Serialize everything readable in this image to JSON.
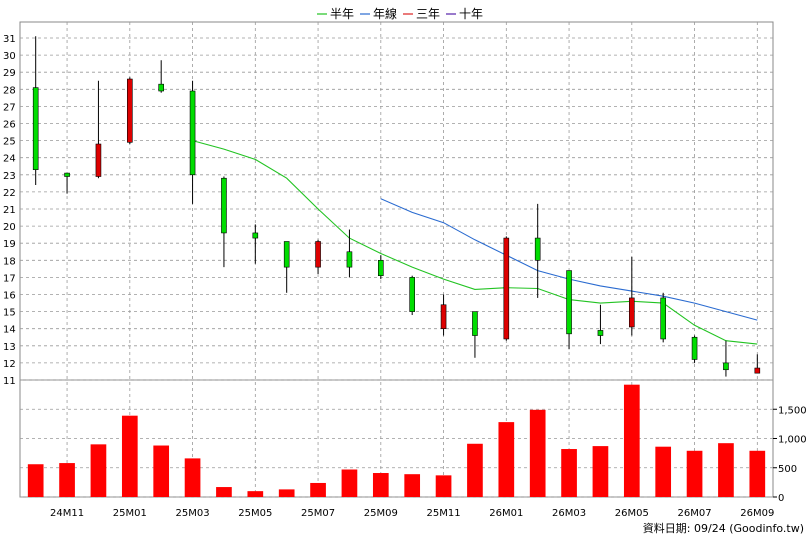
{
  "chart_data": {
    "type": "candlestick",
    "legend": [
      {
        "name": "半年",
        "color": "#22c322"
      },
      {
        "name": "年線",
        "color": "#2a6bd0"
      },
      {
        "name": "三年",
        "color": "#dd2222"
      },
      {
        "name": "十年",
        "color": "#5522aa"
      }
    ],
    "months": [
      "24M10",
      "24M11",
      "24M12",
      "25M01",
      "25M02",
      "25M03",
      "25M04",
      "25M05",
      "25M06",
      "25M07",
      "25M08",
      "25M09",
      "25M10",
      "25M11",
      "25M12",
      "26M01",
      "26M02",
      "26M03",
      "26M04",
      "26M05",
      "26M06",
      "26M07",
      "26M08",
      "26M09"
    ],
    "x_tick_labels": [
      "24M11",
      "25M01",
      "25M03",
      "25M05",
      "25M07",
      "25M09",
      "25M11",
      "26M01",
      "26M03",
      "26M05",
      "26M07",
      "26M09"
    ],
    "candles": [
      {
        "open": 23.3,
        "high": 31.1,
        "low": 22.4,
        "close": 28.1
      },
      {
        "open": 22.9,
        "high": 23.1,
        "low": 21.9,
        "close": 23.1
      },
      {
        "open": 24.8,
        "high": 28.5,
        "low": 22.8,
        "close": 22.9
      },
      {
        "open": 28.6,
        "high": 28.7,
        "low": 24.8,
        "close": 24.9
      },
      {
        "open": 27.9,
        "high": 29.7,
        "low": 27.8,
        "close": 28.3
      },
      {
        "open": 23.0,
        "high": 28.5,
        "low": 21.3,
        "close": 27.9
      },
      {
        "open": 19.6,
        "high": 22.9,
        "low": 17.6,
        "close": 22.8
      },
      {
        "open": 19.3,
        "high": 20.1,
        "low": 17.8,
        "close": 19.6
      },
      {
        "open": 17.6,
        "high": 19.1,
        "low": 16.1,
        "close": 19.1
      },
      {
        "open": 19.1,
        "high": 19.2,
        "low": 17.2,
        "close": 17.6
      },
      {
        "open": 17.6,
        "high": 19.8,
        "low": 17.0,
        "close": 18.5
      },
      {
        "open": 17.1,
        "high": 18.3,
        "low": 16.9,
        "close": 18.0
      },
      {
        "open": 15.0,
        "high": 17.1,
        "low": 14.8,
        "close": 17.0
      },
      {
        "open": 15.4,
        "high": 16.0,
        "low": 13.6,
        "close": 14.0
      },
      {
        "open": 13.6,
        "high": 14.9,
        "low": 12.3,
        "close": 15.0
      },
      {
        "open": 19.3,
        "high": 19.4,
        "low": 13.3,
        "close": 13.4
      },
      {
        "open": 18.0,
        "high": 21.3,
        "low": 15.8,
        "close": 19.3
      },
      {
        "open": 13.7,
        "high": 17.4,
        "low": 12.8,
        "close": 17.4
      },
      {
        "open": 13.6,
        "high": 15.4,
        "low": 13.1,
        "close": 13.9
      },
      {
        "open": 15.8,
        "high": 18.2,
        "low": 13.6,
        "close": 14.1
      },
      {
        "open": 13.4,
        "high": 16.1,
        "low": 13.2,
        "close": 15.8
      },
      {
        "open": 12.2,
        "high": 13.6,
        "low": 12.0,
        "close": 13.5
      },
      {
        "open": 11.6,
        "high": 13.3,
        "low": 11.2,
        "close": 12.0
      },
      {
        "open": 11.7,
        "high": 12.5,
        "low": 11.4,
        "close": 11.4
      }
    ],
    "half_year_line": [
      null,
      null,
      null,
      null,
      null,
      25.0,
      24.5,
      23.9,
      22.8,
      21.0,
      19.3,
      18.4,
      17.6,
      16.9,
      16.3,
      16.4,
      16.35,
      15.7,
      15.5,
      15.6,
      15.5,
      14.2,
      13.3,
      13.1
    ],
    "year_line": [
      null,
      null,
      null,
      null,
      null,
      null,
      null,
      null,
      null,
      null,
      null,
      21.6,
      20.8,
      20.2,
      19.2,
      18.3,
      17.4,
      16.9,
      16.5,
      16.2,
      15.9,
      15.5,
      15.0,
      14.5
    ],
    "volumes": [
      560,
      580,
      900,
      1390,
      880,
      660,
      170,
      100,
      130,
      240,
      470,
      410,
      390,
      370,
      910,
      1280,
      1490,
      820,
      870,
      1920,
      860,
      790,
      920,
      790
    ],
    "price_axis": {
      "min": 11,
      "max": 31,
      "ticks": [
        11,
        12,
        13,
        14,
        15,
        16,
        17,
        18,
        19,
        20,
        21,
        22,
        23,
        24,
        25,
        26,
        27,
        28,
        29,
        30,
        31
      ]
    },
    "volume_axis": {
      "min": 0,
      "max": 2000,
      "ticks": [
        0,
        500,
        1000,
        1500
      ],
      "tick_labels": [
        "0",
        "500",
        "1,000",
        "1,500"
      ]
    },
    "colors": {
      "up": "#00dd00",
      "down": "#dd0000",
      "volume": "#ff0000",
      "grid": "#999999",
      "half_year": "#22c322",
      "year": "#2a6bd0"
    }
  },
  "footer": "資料日期: 09/24  (Goodinfo.tw)"
}
